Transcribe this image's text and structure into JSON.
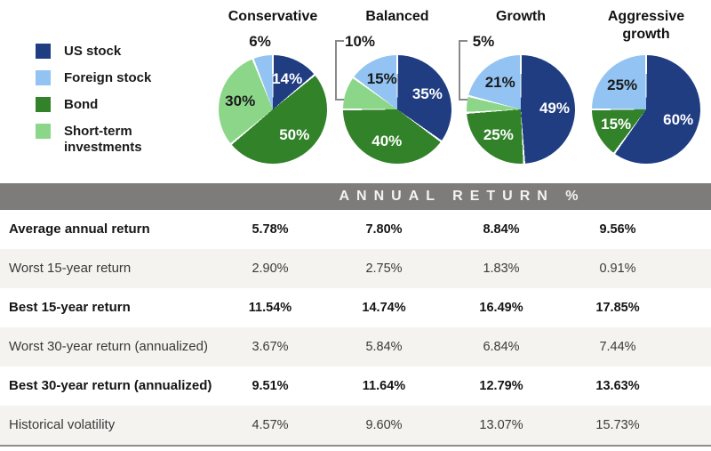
{
  "colors": {
    "us_stock": "#203d82",
    "foreign_stock": "#92c3f2",
    "bond": "#318229",
    "short_term": "#8cd689",
    "header_bar": "#7d7c7a",
    "row_alt": "#f4f3f0",
    "label_dark": "#1a1a1a",
    "bracket_line": "#8a8a8a"
  },
  "legend": {
    "items": [
      {
        "key": "us_stock",
        "label": "US stock"
      },
      {
        "key": "foreign_stock",
        "label": "Foreign stock"
      },
      {
        "key": "bond",
        "label": "Bond"
      },
      {
        "key": "short_term",
        "label": "Short-term investments"
      }
    ]
  },
  "chart_data": [
    {
      "type": "pie",
      "title": "Conservative",
      "title_lines": [
        "Conservative"
      ],
      "slices": [
        {
          "segment": "US stock",
          "key": "us_stock",
          "value": 14,
          "label": "14%",
          "label_style": "light",
          "placement": "inside"
        },
        {
          "segment": "Bond",
          "key": "bond",
          "value": 50,
          "label": "50%",
          "label_style": "light",
          "placement": "inside"
        },
        {
          "segment": "Short-term investments",
          "key": "short_term",
          "value": 30,
          "label": "30%",
          "label_style": "dark",
          "placement": "inside"
        },
        {
          "segment": "Foreign stock",
          "key": "foreign_stock",
          "value": 6,
          "label": "6%",
          "label_style": "dark",
          "placement": "above"
        }
      ]
    },
    {
      "type": "pie",
      "title": "Balanced",
      "title_lines": [
        "Balanced"
      ],
      "slices": [
        {
          "segment": "US stock",
          "key": "us_stock",
          "value": 35,
          "label": "35%",
          "label_style": "light",
          "placement": "inside"
        },
        {
          "segment": "Bond",
          "key": "bond",
          "value": 40,
          "label": "40%",
          "label_style": "light",
          "placement": "inside"
        },
        {
          "segment": "Short-term investments",
          "key": "short_term",
          "value": 10,
          "label": "10%",
          "label_style": "dark",
          "placement": "callout"
        },
        {
          "segment": "Foreign stock",
          "key": "foreign_stock",
          "value": 15,
          "label": "15%",
          "label_style": "dark",
          "placement": "inside"
        }
      ]
    },
    {
      "type": "pie",
      "title": "Growth",
      "title_lines": [
        "Growth"
      ],
      "slices": [
        {
          "segment": "US stock",
          "key": "us_stock",
          "value": 49,
          "label": "49%",
          "label_style": "light",
          "placement": "inside"
        },
        {
          "segment": "Bond",
          "key": "bond",
          "value": 25,
          "label": "25%",
          "label_style": "light",
          "placement": "inside"
        },
        {
          "segment": "Short-term investments",
          "key": "short_term",
          "value": 5,
          "label": "5%",
          "label_style": "dark",
          "placement": "callout"
        },
        {
          "segment": "Foreign stock",
          "key": "foreign_stock",
          "value": 21,
          "label": "21%",
          "label_style": "dark",
          "placement": "inside"
        }
      ]
    },
    {
      "type": "pie",
      "title": "Aggressive growth",
      "title_lines": [
        "Aggressive",
        "growth"
      ],
      "slices": [
        {
          "segment": "US stock",
          "key": "us_stock",
          "value": 60,
          "label": "60%",
          "label_style": "light",
          "placement": "inside"
        },
        {
          "segment": "Bond",
          "key": "bond",
          "value": 15,
          "label": "15%",
          "label_style": "light",
          "placement": "inside"
        },
        {
          "segment": "Foreign stock",
          "key": "foreign_stock",
          "value": 25,
          "label": "25%",
          "label_style": "dark",
          "placement": "inside"
        }
      ]
    },
    {
      "type": "table",
      "title": "ANNUAL RETURN %",
      "columns": [
        "Conservative",
        "Balanced",
        "Growth",
        "Aggressive growth"
      ],
      "rows": [
        {
          "label": "Average annual return",
          "values": [
            "5.78%",
            "7.80%",
            "8.84%",
            "9.56%"
          ],
          "bold": true
        },
        {
          "label": "Worst 15-year return",
          "values": [
            "2.90%",
            "2.75%",
            "1.83%",
            "0.91%"
          ],
          "bold": false
        },
        {
          "label": "Best 15-year return",
          "values": [
            "11.54%",
            "14.74%",
            "16.49%",
            "17.85%"
          ],
          "bold": true
        },
        {
          "label": "Worst 30-year return (annualized)",
          "values": [
            "3.67%",
            "5.84%",
            "6.84%",
            "7.44%"
          ],
          "bold": false
        },
        {
          "label": "Best 30-year return (annualized)",
          "values": [
            "9.51%",
            "11.64%",
            "12.79%",
            "13.63%"
          ],
          "bold": true
        },
        {
          "label": "Historical volatility",
          "values": [
            "4.57%",
            "9.60%",
            "13.07%",
            "15.73%"
          ],
          "bold": false
        }
      ]
    }
  ]
}
